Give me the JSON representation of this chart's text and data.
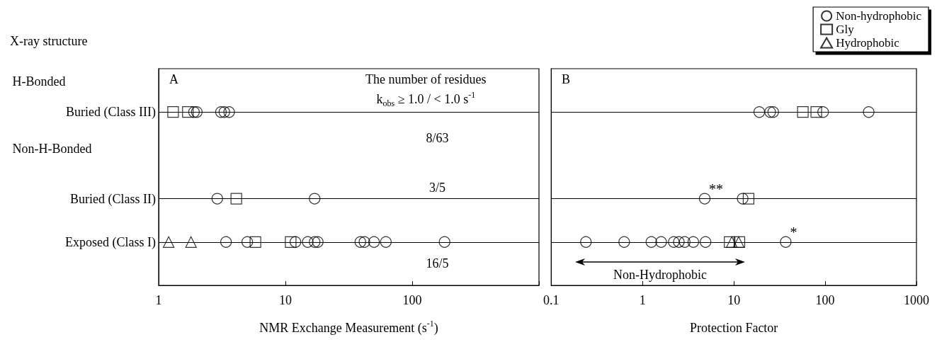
{
  "chart_data": [
    {
      "type": "scatter",
      "orientation": "horizontal",
      "ylabel": "X-ray structure",
      "xlabel": "NMR Exchange Measurement (s$^{-1}$)",
      "categories": [
        null,
        "Buried (Class III)",
        null,
        "Buried (Class II)",
        "Exposed (Class I)",
        null
      ],
      "log": "x",
      "xlim": [
        1,
        1000
      ],
      "xticks": [
        1,
        10,
        100,
        {
          "value": 1000,
          "label": null
        }
      ],
      "grid": "y",
      "legend": false,
      "annotations": [
        "A",
        "The number of residues",
        "k$_{obs}$ ≥ 1.0 / < 1.0 s$^{-1}$",
        "8/63",
        "3/5",
        "16/5",
        "H-Bonded",
        "Non-H-Bonded"
      ],
      "series": [
        {
          "color": "#000000",
          "marker": "circle",
          "values": [
            1.9,
            2.0,
            3.1,
            3.3,
            3.6,
            2.9,
            17,
            3.4,
            5.0,
            12,
            15,
            17,
            18,
            39,
            42,
            50,
            62,
            180
          ],
          "x": [
            "Buried (Class III)",
            "Buried (Class III)",
            "Buried (Class III)",
            "Buried (Class III)",
            "Buried (Class III)",
            "Buried (Class II)",
            "Buried (Class II)",
            "Exposed (Class I)",
            "Exposed (Class I)",
            "Exposed (Class I)",
            "Exposed (Class I)",
            "Exposed (Class I)",
            "Exposed (Class I)",
            "Exposed (Class I)",
            "Exposed (Class I)",
            "Exposed (Class I)",
            "Exposed (Class I)",
            "Exposed (Class I)"
          ]
        },
        {
          "color": "#000000",
          "marker": "square",
          "values": [
            1.3,
            1.7,
            4.1,
            5.8,
            11
          ],
          "x": [
            "Buried (Class III)",
            "Buried (Class III)",
            "Buried (Class II)",
            "Exposed (Class I)",
            "Exposed (Class I)"
          ]
        },
        {
          "color": "#000000",
          "marker": "triangle",
          "values": [
            1.2,
            1.8
          ],
          "x": [
            "Exposed (Class I)",
            "Exposed (Class I)"
          ]
        }
      ]
    },
    {
      "type": "scatter",
      "orientation": "horizontal",
      "xlabel": "Protection Factor",
      "categories": [
        null,
        "Buried (Class III)",
        null,
        "Buried (Class II)",
        "Exposed (Class I)",
        null
      ],
      "log": "x",
      "xlim": [
        0.1,
        1000
      ],
      "xticks": [
        0.1,
        1,
        10,
        100,
        1000
      ],
      "grid": "y",
      "legend": "top right",
      "tick_labels": "x",
      "annotations": [
        "B",
        {
          "text": "**",
          "x": 4.8,
          "y": "Buried (Class II)"
        },
        {
          "text": "*",
          "x": 37,
          "y": "Exposed (Class I)"
        },
        "Non-Hydrophobic"
      ],
      "series": [
        {
          "name": "Non-hydrophobic",
          "color": "#000000",
          "marker": "circle",
          "values": [
            19,
            25,
            27,
            95,
            300,
            4.8,
            12.5,
            0.24,
            0.63,
            1.25,
            1.6,
            2.2,
            2.5,
            2.9,
            3.6,
            4.9,
            37
          ],
          "x": [
            "Buried (Class III)",
            "Buried (Class III)",
            "Buried (Class III)",
            "Buried (Class III)",
            "Buried (Class III)",
            "Buried (Class II)",
            "Buried (Class II)",
            "Exposed (Class I)",
            "Exposed (Class I)",
            "Exposed (Class I)",
            "Exposed (Class I)",
            "Exposed (Class I)",
            "Exposed (Class I)",
            "Exposed (Class I)",
            "Exposed (Class I)",
            "Exposed (Class I)",
            "Exposed (Class I)"
          ]
        },
        {
          "name": "Gly",
          "color": "#000000",
          "marker": "square",
          "values": [
            57,
            80,
            14.5,
            9,
            11.5
          ],
          "x": [
            "Buried (Class III)",
            "Buried (Class III)",
            "Buried (Class II)",
            "Exposed (Class I)",
            "Exposed (Class I)"
          ]
        },
        {
          "name": "Hydrophobic",
          "color": "#000000",
          "marker": "triangle",
          "values": [
            9.5,
            11.3
          ],
          "x": [
            "Exposed (Class I)",
            "Exposed (Class I)"
          ]
        }
      ]
    }
  ]
}
